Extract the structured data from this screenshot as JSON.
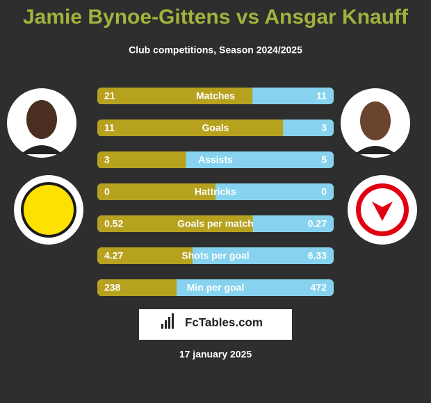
{
  "title": "Jamie Bynoe-Gittens vs Ansgar Knauff",
  "subtitle": "Club competitions, Season 2024/2025",
  "rows": [
    {
      "label": "Matches",
      "left": 21,
      "right": 11
    },
    {
      "label": "Goals",
      "left": 11,
      "right": 3
    },
    {
      "label": "Assists",
      "left": 3,
      "right": 5
    },
    {
      "label": "Hattricks",
      "left": 0,
      "right": 0
    },
    {
      "label": "Goals per match",
      "left": 0.52,
      "right": 0.27
    },
    {
      "label": "Shots per goal",
      "left": 4.27,
      "right": 6.33
    },
    {
      "label": "Min per goal",
      "left": 238,
      "right": 472
    }
  ],
  "logo": "FcTables.com",
  "date": "17 january 2025"
}
